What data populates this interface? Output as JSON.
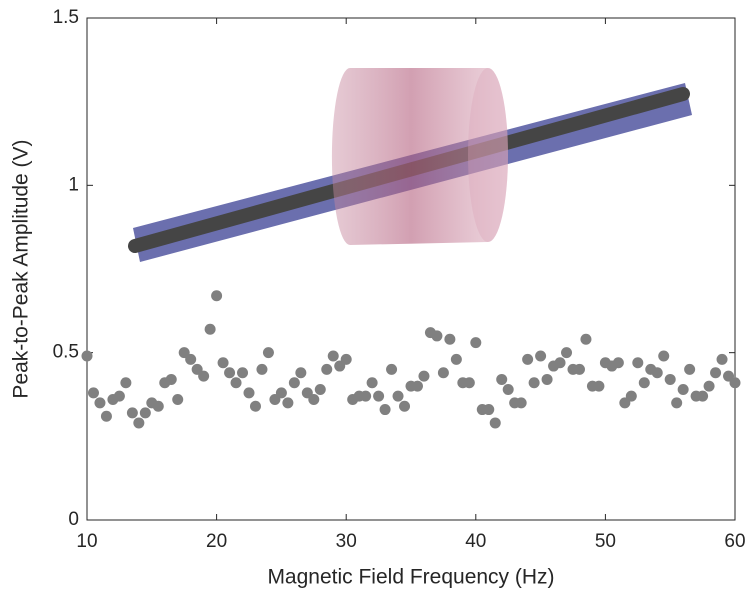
{
  "chart_data": {
    "type": "scatter",
    "x_label": "Magnetic Field Frequency (Hz)",
    "y_label": "Peak-to-Peak Amplitude  (V)",
    "xlim": [
      10,
      60
    ],
    "xticks": [
      10,
      20,
      30,
      40,
      50,
      60
    ],
    "ylim": [
      0,
      1.5
    ],
    "yticks": [
      0,
      0.5,
      1,
      1.5
    ],
    "series": [
      {
        "color": "#808080",
        "x": [
          10,
          10.5,
          11,
          11.5,
          12,
          12.5,
          13,
          13.5,
          14,
          14.5,
          15,
          15.5,
          16,
          16.5,
          17,
          17.5,
          18,
          18.5,
          19,
          19.5,
          20,
          20.5,
          21,
          21.5,
          22,
          22.5,
          23,
          23.5,
          24,
          24.5,
          25,
          25.5,
          26,
          26.5,
          27,
          27.5,
          28,
          28.5,
          29,
          29.5,
          30,
          30.5,
          31,
          31.5,
          32,
          32.5,
          33,
          33.5,
          34,
          34.5,
          35,
          35.5,
          36,
          36.5,
          37,
          37.5,
          38,
          38.5,
          39,
          39.5,
          40,
          40.5,
          41,
          41.5,
          42,
          42.5,
          43,
          43.5,
          44,
          44.5,
          45,
          45.5,
          46,
          46.5,
          47,
          47.5,
          48,
          48.5,
          49,
          49.5,
          50,
          50.5,
          51,
          51.5,
          52,
          52.5,
          53,
          53.5,
          54,
          54.5,
          55,
          55.5,
          56,
          56.5,
          57,
          57.5,
          58,
          58.5,
          59,
          59.5,
          60
        ],
        "values": [
          0.49,
          0.38,
          0.35,
          0.31,
          0.36,
          0.37,
          0.41,
          0.32,
          0.29,
          0.32,
          0.35,
          0.34,
          0.41,
          0.42,
          0.36,
          0.5,
          0.48,
          0.45,
          0.43,
          0.57,
          0.67,
          0.47,
          0.44,
          0.41,
          0.44,
          0.38,
          0.34,
          0.45,
          0.5,
          0.36,
          0.38,
          0.35,
          0.41,
          0.44,
          0.38,
          0.36,
          0.39,
          0.45,
          0.49,
          0.46,
          0.48,
          0.36,
          0.37,
          0.37,
          0.41,
          0.37,
          0.33,
          0.45,
          0.37,
          0.34,
          0.4,
          0.4,
          0.43,
          0.56,
          0.55,
          0.44,
          0.54,
          0.48,
          0.41,
          0.41,
          0.53,
          0.33,
          0.33,
          0.29,
          0.42,
          0.39,
          0.35,
          0.35,
          0.48,
          0.41,
          0.49,
          0.42,
          0.46,
          0.47,
          0.5,
          0.45,
          0.45,
          0.54,
          0.4,
          0.4,
          0.47,
          0.46,
          0.47,
          0.35,
          0.37,
          0.47,
          0.41,
          0.45,
          0.44,
          0.49,
          0.42,
          0.35,
          0.39,
          0.45,
          0.37,
          0.37,
          0.4,
          0.44,
          0.48,
          0.43,
          0.41
        ]
      }
    ]
  }
}
